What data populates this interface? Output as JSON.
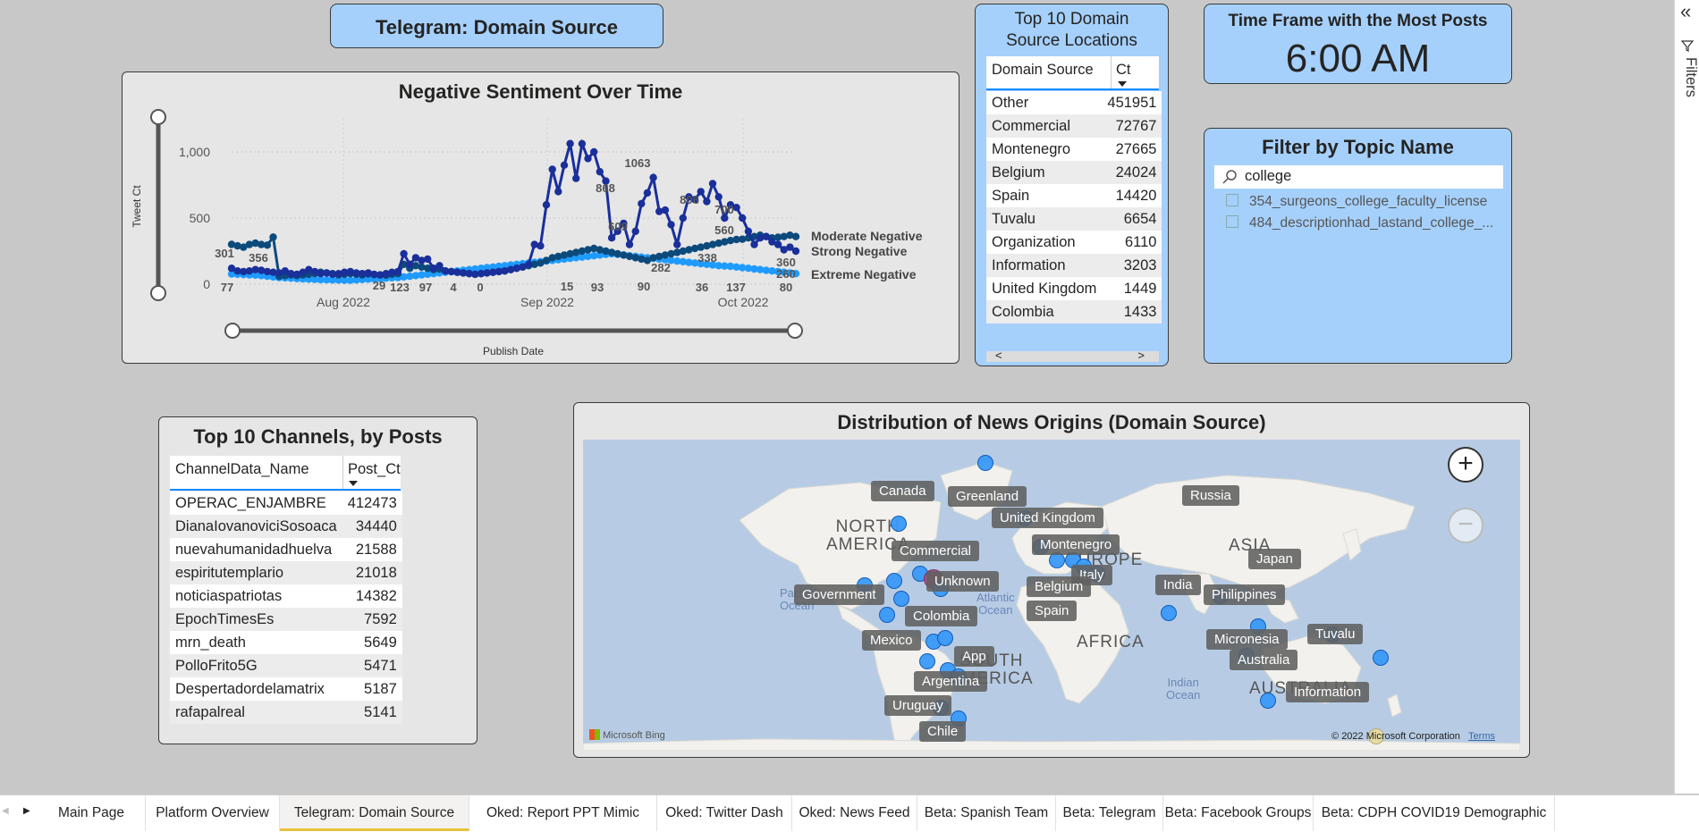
{
  "page_title": "Telegram: Domain Source",
  "sentiment_chart": {
    "title": "Negative Sentiment Over Time",
    "xlabel": "Publish Date",
    "ylabel": "Tweet Ct",
    "legend": [
      "Moderate Negative",
      "Strong Negative",
      "Extreme Negative"
    ],
    "chart_data": {
      "type": "line",
      "title": "Negative Sentiment Over Time",
      "xlabel": "Publish Date",
      "ylabel": "Tweet Ct",
      "ylim": [
        0,
        1250
      ],
      "yticks": [
        "0",
        "500",
        "1,000"
      ],
      "xticks": [
        "Aug 2022",
        "Sep 2022",
        "Oct 2022"
      ],
      "grid": true,
      "series": [
        {
          "name": "Moderate Negative",
          "color": "#1a2f9a",
          "values": [
            120,
            100,
            95,
            100,
            110,
            105,
            95,
            90,
            85,
            100,
            80,
            75,
            90,
            110,
            95,
            80,
            85,
            75,
            80,
            90,
            95,
            85,
            80,
            85,
            75,
            70,
            80,
            90,
            95,
            230,
            150,
            200,
            180,
            190,
            120,
            140,
            100,
            95,
            90,
            85,
            80,
            75,
            80,
            85,
            90,
            95,
            100,
            110,
            120,
            130,
            150,
            300,
            290,
            600,
            868,
            700,
            900,
            1063,
            800,
            1062,
            950,
            1000,
            850,
            780,
            350,
            400,
            460,
            300,
            400,
            609,
            690,
            806,
            550,
            560,
            450,
            300,
            500,
            660,
            640,
            700,
            625,
            760,
            660,
            500,
            600,
            580,
            500,
            400,
            300,
            350,
            360,
            320,
            300,
            260,
            280,
            250
          ]
        },
        {
          "name": "Strong Negative",
          "color": "#0c4a7c",
          "values": [
            301,
            290,
            280,
            300,
            310,
            300,
            295,
            356,
            60,
            65,
            70,
            65,
            70,
            75,
            80,
            90,
            85,
            80,
            70,
            75,
            80,
            75,
            70,
            78,
            72,
            70,
            68,
            75,
            80,
            150,
            120,
            140,
            130,
            120,
            110,
            115,
            100,
            95,
            90,
            85,
            80,
            75,
            80,
            85,
            90,
            95,
            100,
            110,
            120,
            130,
            140,
            150,
            160,
            180,
            200,
            210,
            220,
            230,
            240,
            250,
            260,
            270,
            260,
            250,
            240,
            230,
            220,
            210,
            200,
            190,
            180,
            200,
            210,
            220,
            230,
            240,
            250,
            260,
            270,
            280,
            290,
            300,
            310,
            320,
            330,
            338,
            340,
            350,
            360,
            370,
            360,
            350,
            355,
            360,
            370,
            360
          ]
        },
        {
          "name": "Extreme Negative",
          "color": "#1f9bff",
          "values": [
            77,
            75,
            72,
            70,
            68,
            65,
            60,
            55,
            50,
            48,
            45,
            42,
            40,
            38,
            36,
            34,
            33,
            32,
            31,
            30,
            29,
            32,
            35,
            38,
            40,
            42,
            45,
            48,
            50,
            55,
            60,
            65,
            70,
            75,
            80,
            85,
            90,
            95,
            100,
            105,
            110,
            115,
            120,
            125,
            130,
            135,
            140,
            145,
            150,
            155,
            160,
            165,
            170,
            175,
            180,
            185,
            190,
            195,
            200,
            205,
            210,
            215,
            220,
            225,
            230,
            225,
            220,
            215,
            210,
            205,
            200,
            195,
            190,
            185,
            180,
            175,
            170,
            165,
            160,
            155,
            150,
            145,
            140,
            137,
            135,
            130,
            125,
            120,
            115,
            110,
            105,
            100,
            95,
            90,
            85,
            80
          ]
        }
      ],
      "data_labels": [
        {
          "text": "301"
        },
        {
          "text": "356"
        },
        {
          "text": "77"
        },
        {
          "text": "29"
        },
        {
          "text": "123"
        },
        {
          "text": "97"
        },
        {
          "text": "4"
        },
        {
          "text": "0"
        },
        {
          "text": "15"
        },
        {
          "text": "93"
        },
        {
          "text": "868"
        },
        {
          "text": "1063"
        },
        {
          "text": "609"
        },
        {
          "text": "90"
        },
        {
          "text": "806"
        },
        {
          "text": "282"
        },
        {
          "text": "36"
        },
        {
          "text": "338"
        },
        {
          "text": "700"
        },
        {
          "text": "560"
        },
        {
          "text": "137"
        },
        {
          "text": "360"
        },
        {
          "text": "260"
        },
        {
          "text": "80"
        }
      ]
    }
  },
  "top10_locations": {
    "title_line1": "Top 10 Domain",
    "title_line2": "Source Locations",
    "col1": "Domain Source",
    "col2": "Ct",
    "rows": [
      {
        "name": "Other",
        "ct": "451951"
      },
      {
        "name": "Commercial",
        "ct": "72767"
      },
      {
        "name": "Montenegro",
        "ct": "27665"
      },
      {
        "name": "Belgium",
        "ct": "24024"
      },
      {
        "name": "Spain",
        "ct": "14420"
      },
      {
        "name": "Tuvalu",
        "ct": "6654"
      },
      {
        "name": "Organization",
        "ct": "6110"
      },
      {
        "name": "Information",
        "ct": "3203"
      },
      {
        "name": "United Kingdom",
        "ct": "1449"
      },
      {
        "name": "Colombia",
        "ct": "1433"
      }
    ],
    "scroll_left": "<",
    "scroll_right": ">"
  },
  "timeframe": {
    "title": "Time Frame with the Most Posts",
    "value": "6:00 AM"
  },
  "topic_filter": {
    "title": "Filter by Topic Name",
    "search_value": "college",
    "options": [
      "354_surgeons_college_faculty_license",
      "484_descriptionhad_lastand_college_..."
    ]
  },
  "top10_channels": {
    "title": "Top 10 Channels, by Posts",
    "col1": "ChannelData_Name",
    "col2": "Post_Ct",
    "rows": [
      {
        "name": "OPERAC_ENJAMBRE",
        "ct": "412473"
      },
      {
        "name": "DianaIovanoviciSosoaca",
        "ct": "34440"
      },
      {
        "name": "nuevahumanidadhuelva",
        "ct": "21588"
      },
      {
        "name": "espiritutemplario",
        "ct": "21018"
      },
      {
        "name": "noticiaspatriotas",
        "ct": "14382"
      },
      {
        "name": "EpochTimesEs",
        "ct": "7592"
      },
      {
        "name": "mrn_death",
        "ct": "5649"
      },
      {
        "name": "PolloFrito5G",
        "ct": "5471"
      },
      {
        "name": "Despertadordelamatrix",
        "ct": "5187"
      },
      {
        "name": "rafapalreal",
        "ct": "5141"
      }
    ]
  },
  "map": {
    "title": "Distribution of News Origins (Domain Source)",
    "continents": [
      "NORTH",
      "AMERICA",
      "SOUTH",
      "AMERICA",
      "EUROPE",
      "AFRICA",
      "ASIA",
      "AUSTRALIA"
    ],
    "oceans": [
      "Pacific",
      "Ocean",
      "Atlantic",
      "Ocean",
      "Indian",
      "Ocean"
    ],
    "labels": [
      "Canada",
      "Greenland",
      "United Kingdom",
      "Russia",
      "Montenegro",
      "Commercial",
      "Unknown",
      "Government",
      "Italy",
      "Belgium",
      "India",
      "Japan",
      "Philippines",
      "Colombia",
      "Spain",
      "Mexico",
      "Micronesia",
      "Tuvalu",
      "App",
      "Australia",
      "Argentina",
      "Information",
      "Uruguay",
      "Chile"
    ],
    "attribution": "Microsoft Bing",
    "copyright": "© 2022 Microsoft Corporation",
    "terms": "Terms",
    "zoom_in": "+",
    "zoom_out": "−"
  },
  "filters_pane": {
    "label": "Filters",
    "collapse": "«"
  },
  "tabs": [
    "Main Page",
    "Platform Overview",
    "Telegram: Domain Source",
    "Oked: Report PPT Mimic",
    "Oked: Twitter Dash",
    "Oked: News Feed",
    "Beta: Spanish Team",
    "Beta: Telegram",
    "Beta: Facebook Groups",
    "Beta: CDPH COVID19 Demographic"
  ],
  "active_tab": "Telegram: Domain Source",
  "tab_nav": {
    "prev": "◀",
    "next": "▶"
  }
}
